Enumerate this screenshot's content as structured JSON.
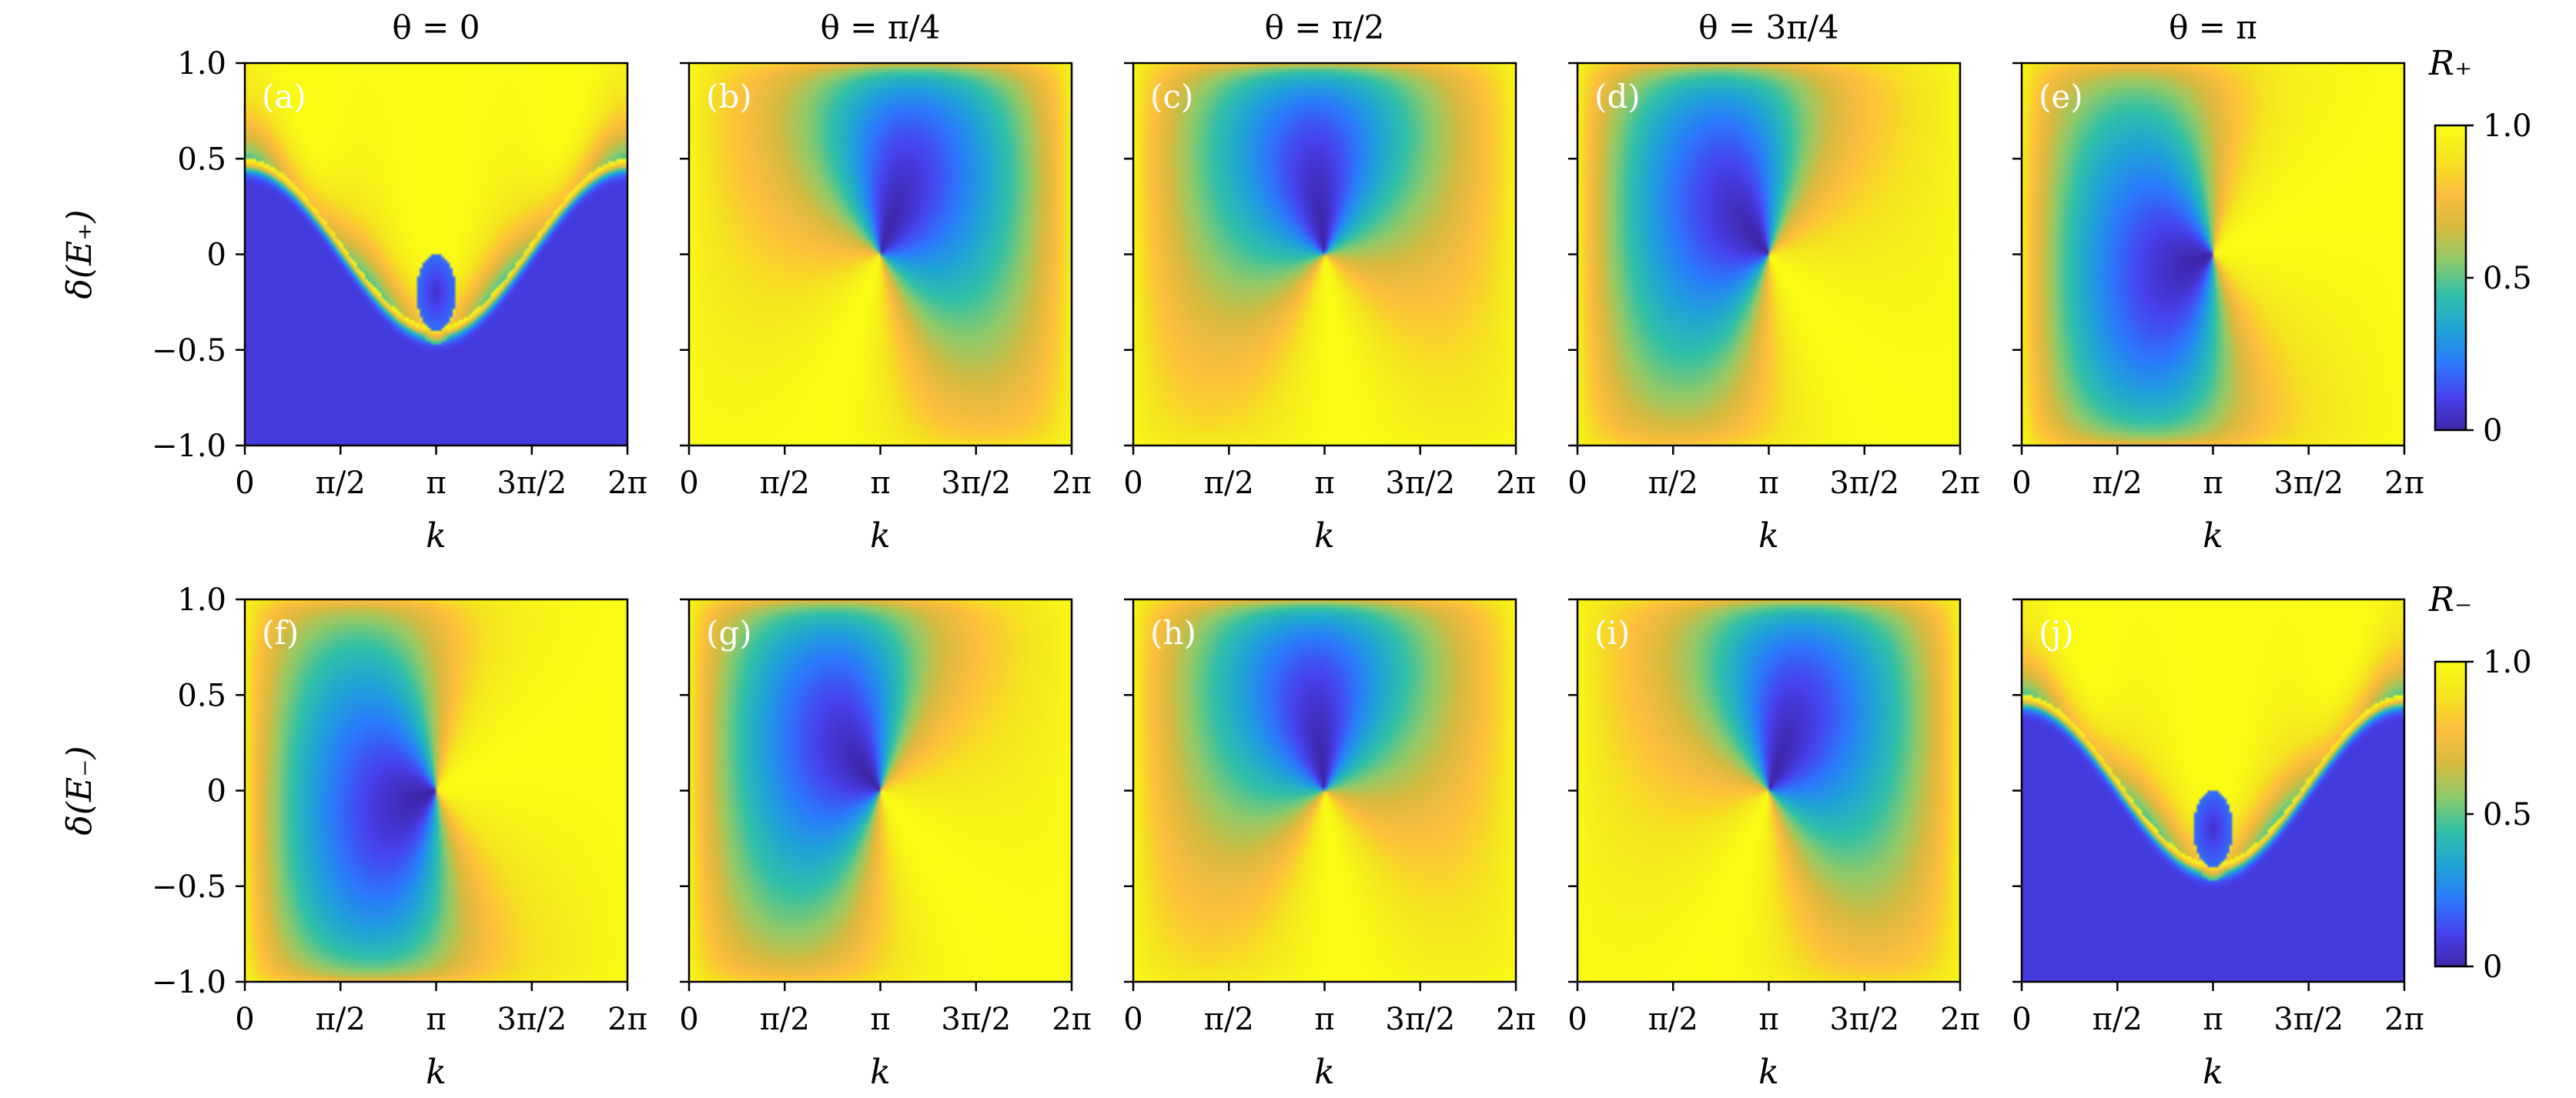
{
  "columns": [
    {
      "title": "θ = 0",
      "theta": 0
    },
    {
      "title": "θ = π/4",
      "theta": 0.7853981634
    },
    {
      "title": "θ = π/2",
      "theta": 1.5707963268
    },
    {
      "title": "θ = 3π/4",
      "theta": 2.3561944902
    },
    {
      "title": "θ = π",
      "theta": 3.1415926536
    }
  ],
  "rows": [
    {
      "ylabel": "δ(E₊)",
      "colorbar_title": "R₊",
      "panels": [
        "(a)",
        "(b)",
        "(c)",
        "(d)",
        "(e)"
      ]
    },
    {
      "ylabel": "δ(E₋)",
      "colorbar_title": "R₋",
      "panels": [
        "(f)",
        "(g)",
        "(h)",
        "(i)",
        "(j)"
      ]
    }
  ],
  "xlabel": "k",
  "x_ticks": [
    "0",
    "π/2",
    "π",
    "3π/2",
    "2π"
  ],
  "y_ticks": [
    "1.0",
    "0.5",
    "0",
    "−0.5",
    "−1.0"
  ],
  "colorbar_ticks": [
    "1.0",
    "0.5",
    "0"
  ],
  "chart_data": {
    "type": "heatmap",
    "grid": [
      2,
      5
    ],
    "x": {
      "label": "k",
      "range": [
        0,
        6.2831853
      ],
      "ticks": [
        0,
        1.5707963,
        3.1415927,
        4.712389,
        6.2831853
      ],
      "tick_labels": [
        "0",
        "π/2",
        "π",
        "3π/2",
        "2π"
      ]
    },
    "y": {
      "range": [
        -1.0,
        1.0
      ],
      "ticks": [
        1.0,
        0.5,
        0,
        -0.5,
        -1.0
      ],
      "tick_labels": [
        "1.0",
        "0.5",
        "0",
        "−0.5",
        "−1.0"
      ]
    },
    "color_range": [
      0,
      1
    ],
    "colormap": [
      "#3e26a8",
      "#4743f0",
      "#2b7bfb",
      "#1ea5d6",
      "#2fc0a8",
      "#8dca6a",
      "#d8ba3e",
      "#fdbe3d",
      "#f5e31f",
      "#f9fb15"
    ],
    "colorbars": [
      {
        "title": "R₊",
        "ticks": [
          1.0,
          0.5,
          0
        ]
      },
      {
        "title": "R₋",
        "ticks": [
          1.0,
          0.5,
          0
        ]
      }
    ],
    "panels": [
      {
        "label": "(a)",
        "row": "R₊",
        "theta": "θ = 0",
        "y_label": "δ(E₊)"
      },
      {
        "label": "(b)",
        "row": "R₊",
        "theta": "θ = π/4",
        "y_label": "δ(E₊)"
      },
      {
        "label": "(c)",
        "row": "R₊",
        "theta": "θ = π/2",
        "y_label": "δ(E₊)"
      },
      {
        "label": "(d)",
        "row": "R₊",
        "theta": "θ = 3π/4",
        "y_label": "δ(E₊)"
      },
      {
        "label": "(e)",
        "row": "R₊",
        "theta": "θ = π",
        "y_label": "δ(E₊)"
      },
      {
        "label": "(f)",
        "row": "R₋",
        "theta": "θ = 0",
        "y_label": "δ(E₋)"
      },
      {
        "label": "(g)",
        "row": "R₋",
        "theta": "θ = π/4",
        "y_label": "δ(E₋)"
      },
      {
        "label": "(h)",
        "row": "R₋",
        "theta": "θ = π/2",
        "y_label": "δ(E₋)"
      },
      {
        "label": "(i)",
        "row": "R₋",
        "theta": "θ = 3π/4",
        "y_label": "δ(E₋)"
      },
      {
        "label": "(j)",
        "row": "R₋",
        "theta": "θ = π",
        "y_label": "δ(E₋)"
      }
    ]
  }
}
